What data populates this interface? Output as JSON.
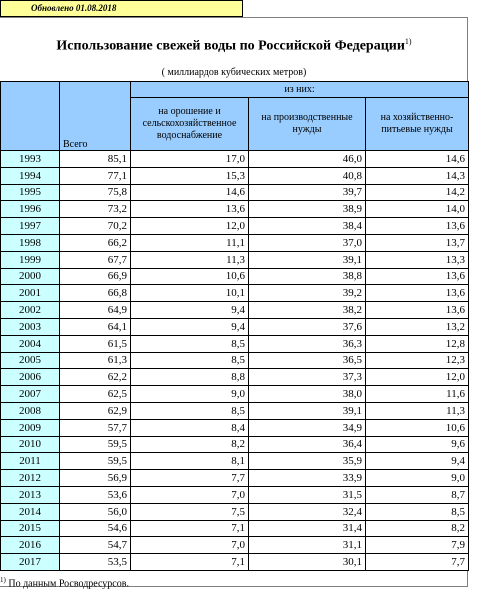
{
  "updated_label": "Обновлено  01.08.2018",
  "title": "Использование свежей воды по Российской Федерации",
  "title_note_mark": "1)",
  "units": "( миллиардов кубических метров)",
  "header": {
    "total": "Всего",
    "of_them": "из них:",
    "irrigation": "на орошение и сельскохозяйственное водоснабжение",
    "production": "на производственные нужды",
    "household": "на хозяйственно-питьевые нужды"
  },
  "rows": [
    {
      "year": "1993",
      "total": "85,1",
      "irrigation": "17,0",
      "production": "46,0",
      "household": "14,6"
    },
    {
      "year": "1994",
      "total": "77,1",
      "irrigation": "15,3",
      "production": "40,8",
      "household": "14,3"
    },
    {
      "year": "1995",
      "total": "75,8",
      "irrigation": "14,6",
      "production": "39,7",
      "household": "14,2"
    },
    {
      "year": "1996",
      "total": "73,2",
      "irrigation": "13,6",
      "production": "38,9",
      "household": "14,0"
    },
    {
      "year": "1997",
      "total": "70,2",
      "irrigation": "12,0",
      "production": "38,4",
      "household": "13,6"
    },
    {
      "year": "1998",
      "total": "66,2",
      "irrigation": "11,1",
      "production": "37,0",
      "household": "13,7"
    },
    {
      "year": "1999",
      "total": "67,7",
      "irrigation": "11,3",
      "production": "39,1",
      "household": "13,3"
    },
    {
      "year": "2000",
      "total": "66,9",
      "irrigation": "10,6",
      "production": "38,8",
      "household": "13,6"
    },
    {
      "year": "2001",
      "total": "66,8",
      "irrigation": "10,1",
      "production": "39,2",
      "household": "13,6"
    },
    {
      "year": "2002",
      "total": "64,9",
      "irrigation": "9,4",
      "production": "38,2",
      "household": "13,6"
    },
    {
      "year": "2003",
      "total": "64,1",
      "irrigation": "9,4",
      "production": "37,6",
      "household": "13,2"
    },
    {
      "year": "2004",
      "total": "61,5",
      "irrigation": "8,5",
      "production": "36,3",
      "household": "12,8"
    },
    {
      "year": "2005",
      "total": "61,3",
      "irrigation": "8,5",
      "production": "36,5",
      "household": "12,3"
    },
    {
      "year": "2006",
      "total": "62,2",
      "irrigation": "8,8",
      "production": "37,3",
      "household": "12,0"
    },
    {
      "year": "2007",
      "total": "62,5",
      "irrigation": "9,0",
      "production": "38,0",
      "household": "11,6"
    },
    {
      "year": "2008",
      "total": "62,9",
      "irrigation": "8,5",
      "production": "39,1",
      "household": "11,3"
    },
    {
      "year": "2009",
      "total": "57,7",
      "irrigation": "8,4",
      "production": "34,9",
      "household": "10,6"
    },
    {
      "year": "2010",
      "total": "59,5",
      "irrigation": "8,2",
      "production": "36,4",
      "household": "9,6"
    },
    {
      "year": "2011",
      "total": "59,5",
      "irrigation": "8,1",
      "production": "35,9",
      "household": "9,4"
    },
    {
      "year": "2012",
      "total": "56,9",
      "irrigation": "7,7",
      "production": "33,9",
      "household": "9,0"
    },
    {
      "year": "2013",
      "total": "53,6",
      "irrigation": "7,0",
      "production": "31,5",
      "household": "8,7"
    },
    {
      "year": "2014",
      "total": "56,0",
      "irrigation": "7,5",
      "production": "32,4",
      "household": "8,5"
    },
    {
      "year": "2015",
      "total": "54,6",
      "irrigation": "7,1",
      "production": "31,4",
      "household": "8,2"
    },
    {
      "year": "2016",
      "total": "54,7",
      "irrigation": "7,0",
      "production": "31,1",
      "household": "7,9"
    },
    {
      "year": "2017",
      "total": "53,5",
      "irrigation": "7,1",
      "production": "30,1",
      "household": "7,7"
    }
  ],
  "footnote_mark": "1)",
  "footnote": "По данным Росводресурсов."
}
